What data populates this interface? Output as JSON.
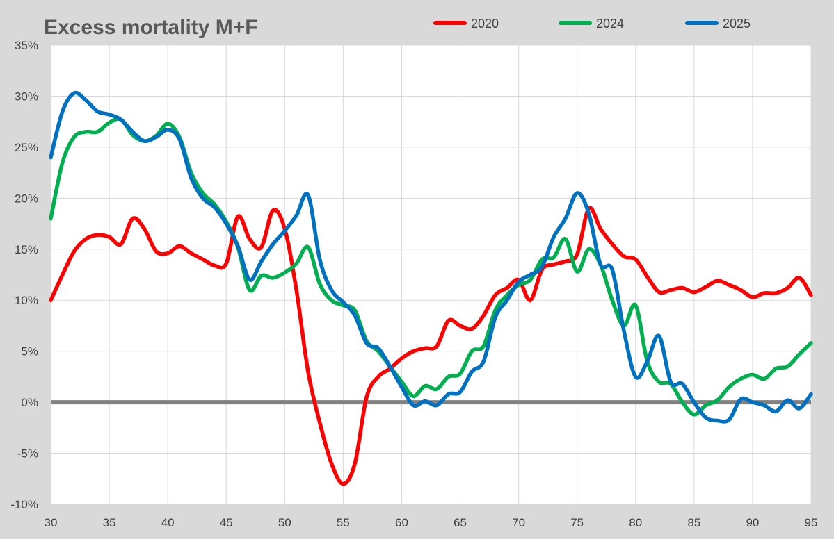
{
  "chart_data": {
    "type": "line",
    "title": "Excess mortality M+F",
    "xlabel": "",
    "ylabel": "",
    "xlim": [
      30,
      95
    ],
    "ylim": [
      -10,
      35
    ],
    "x_ticks": [
      30,
      35,
      40,
      45,
      50,
      55,
      60,
      65,
      70,
      75,
      80,
      85,
      90,
      95
    ],
    "y_ticks": [
      -10,
      -5,
      0,
      5,
      10,
      15,
      20,
      25,
      30,
      35
    ],
    "y_tick_labels": [
      "-10%",
      "-5%",
      "0%",
      "5%",
      "10%",
      "15%",
      "20%",
      "25%",
      "30%",
      "35%"
    ],
    "grid": true,
    "legend_position": "top",
    "zero_line_color": "#808080",
    "series": [
      {
        "name": "2020",
        "color": "#ff0000",
        "x": [
          30,
          31,
          32,
          33,
          34,
          35,
          36,
          37,
          38,
          39,
          40,
          41,
          42,
          43,
          44,
          45,
          46,
          47,
          48,
          49,
          50,
          51,
          52,
          53,
          54,
          55,
          56,
          57,
          58,
          59,
          60,
          61,
          62,
          63,
          64,
          65,
          66,
          67,
          68,
          69,
          70,
          71,
          72,
          73,
          74,
          75,
          76,
          77,
          78,
          79,
          80,
          81,
          82,
          83,
          84,
          85,
          86,
          87,
          88,
          89,
          90,
          91,
          92,
          93,
          94,
          95
        ],
        "values": [
          10,
          12.5,
          14.8,
          16,
          16.4,
          16.2,
          15.5,
          18,
          17,
          14.8,
          14.6,
          15.3,
          14.6,
          14,
          13.4,
          13.6,
          18.2,
          16,
          15.2,
          18.8,
          17,
          11,
          3,
          -2,
          -6,
          -8,
          -6,
          0.5,
          2.5,
          3.3,
          4.3,
          5,
          5.3,
          5.5,
          8,
          7.5,
          7.2,
          8.5,
          10.5,
          11.2,
          12,
          10,
          13,
          13.5,
          13.8,
          14.5,
          19,
          17,
          15.5,
          14.3,
          14,
          12.3,
          10.8,
          11,
          11.2,
          10.8,
          11.3,
          11.9,
          11.5,
          11,
          10.3,
          10.7,
          10.7,
          11.2,
          12.2,
          10.5
        ]
      },
      {
        "name": "2024",
        "color": "#00b050",
        "x": [
          30,
          31,
          32,
          33,
          34,
          35,
          36,
          37,
          38,
          39,
          40,
          41,
          42,
          43,
          44,
          45,
          46,
          47,
          48,
          49,
          50,
          51,
          52,
          53,
          54,
          55,
          56,
          57,
          58,
          59,
          60,
          61,
          62,
          63,
          64,
          65,
          66,
          67,
          68,
          69,
          70,
          71,
          72,
          73,
          74,
          75,
          76,
          77,
          78,
          79,
          80,
          81,
          82,
          83,
          84,
          85,
          86,
          87,
          88,
          89,
          90,
          91,
          92,
          93,
          94,
          95
        ],
        "values": [
          18,
          23.5,
          26,
          26.5,
          26.5,
          27.4,
          27.7,
          26.2,
          25.6,
          26.1,
          27.3,
          26,
          22.5,
          20.5,
          19.4,
          17.7,
          15.2,
          11,
          12.4,
          12.2,
          12.7,
          13.6,
          15.2,
          11.6,
          10,
          9.5,
          9,
          6,
          5,
          3.5,
          2,
          0.6,
          1.6,
          1.3,
          2.5,
          2.8,
          5,
          5.5,
          9,
          10.5,
          11.5,
          12,
          14,
          14.2,
          16,
          12.8,
          15,
          13.5,
          10,
          7.5,
          9.5,
          4,
          2,
          1.8,
          0,
          -1.2,
          -0.3,
          0.2,
          1.5,
          2.3,
          2.7,
          2.3,
          3.3,
          3.5,
          4.7,
          5.8
        ]
      },
      {
        "name": "2025",
        "color": "#0070c0",
        "x": [
          30,
          31,
          32,
          33,
          34,
          35,
          36,
          37,
          38,
          39,
          40,
          41,
          42,
          43,
          44,
          45,
          46,
          47,
          48,
          49,
          50,
          51,
          52,
          53,
          54,
          55,
          56,
          57,
          58,
          59,
          60,
          61,
          62,
          63,
          64,
          65,
          66,
          67,
          68,
          69,
          70,
          71,
          72,
          73,
          74,
          75,
          76,
          77,
          78,
          79,
          80,
          81,
          82,
          83,
          84,
          85,
          86,
          87,
          88,
          89,
          90,
          91,
          92,
          93,
          94,
          95
        ],
        "values": [
          24,
          28.5,
          30.3,
          29.6,
          28.5,
          28.2,
          27.7,
          26.5,
          25.6,
          26,
          26.7,
          25.8,
          22,
          20,
          19.1,
          17.5,
          15.3,
          12,
          13.8,
          15.5,
          16.8,
          18.3,
          20.3,
          14,
          11,
          9.8,
          8.5,
          5.8,
          5.3,
          3.5,
          1.5,
          -0.3,
          0.1,
          -0.3,
          0.8,
          1,
          3,
          4,
          8.3,
          10,
          11.8,
          12.5,
          13.3,
          16.2,
          18,
          20.5,
          18.5,
          13.5,
          13,
          7,
          2.5,
          4,
          6.5,
          2,
          1.8,
          0,
          -1.5,
          -1.8,
          -1.7,
          0.3,
          0,
          -0.3,
          -0.9,
          0.2,
          -0.6,
          0.8
        ]
      }
    ]
  }
}
